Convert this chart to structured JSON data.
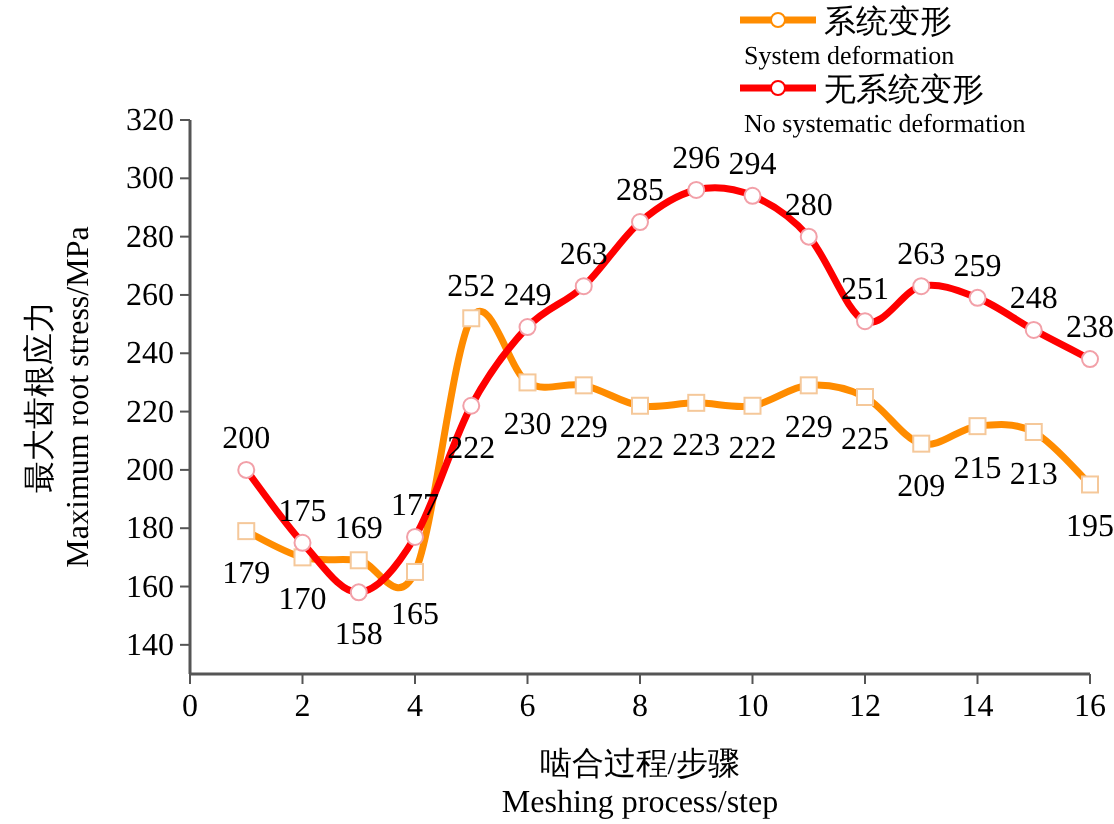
{
  "chart_data": {
    "type": "line",
    "xlabel": "啮合过程/步骤\nMeshing process/step",
    "ylabel": "最大齿根应力\nMaximum root stress/MPa",
    "x": [
      1,
      2,
      3,
      4,
      5,
      6,
      7,
      8,
      9,
      10,
      11,
      12,
      13,
      14,
      15,
      16
    ],
    "series": [
      {
        "name": "系统变形\nSystem deformation",
        "color": "#ff8c00",
        "marker": "square",
        "values": [
          179,
          170,
          169,
          165,
          252,
          230,
          229,
          222,
          223,
          222,
          229,
          225,
          209,
          215,
          213,
          195
        ]
      },
      {
        "name": "无系统变形\nNo systematic deformation",
        "color": "#ff0000",
        "marker": "circle",
        "values": [
          200,
          175,
          158,
          177,
          222,
          249,
          263,
          285,
          296,
          294,
          280,
          251,
          263,
          259,
          248,
          238
        ]
      }
    ],
    "xlim": [
      0,
      16
    ],
    "xticks": [
      0,
      2,
      4,
      6,
      8,
      10,
      12,
      14,
      16
    ],
    "ylim": [
      130,
      320
    ],
    "yticks": [
      140,
      160,
      180,
      200,
      220,
      240,
      260,
      280,
      300,
      320
    ],
    "data_labels": true,
    "legend": "top right",
    "grid": false
  }
}
